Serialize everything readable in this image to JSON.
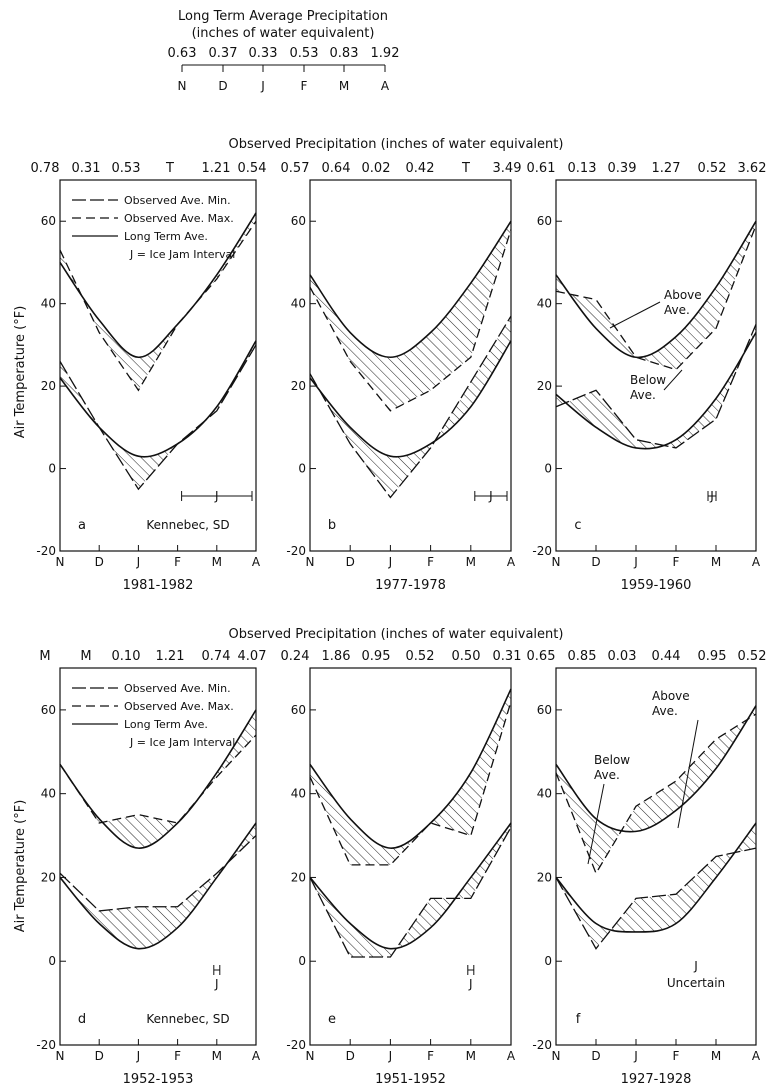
{
  "header": {
    "title_line1": "Long Term Average Precipitation",
    "title_line2": "(inches of water equivalent)",
    "values": [
      "0.63",
      "0.37",
      "0.33",
      "0.53",
      "0.83",
      "1.92"
    ],
    "months": [
      "N",
      "D",
      "J",
      "F",
      "M",
      "A"
    ]
  },
  "obs_precip_title": "Observed Precipitation (inches of water equivalent)",
  "y_axis_label": "Air Temperature (°F)",
  "x_months": [
    "N",
    "D",
    "J",
    "F",
    "M",
    "A"
  ],
  "y_ticks": [
    "-20",
    "0",
    "20",
    "40",
    "60"
  ],
  "legend": {
    "min": "Observed Ave. Min.",
    "max": "Observed Ave. Max.",
    "long": "Long Term Ave.",
    "jam": "J = Ice Jam Interval"
  },
  "colors": {
    "ink": "#111111",
    "hatch": "#222222",
    "paper": "#ffffff"
  },
  "chart_data": [
    {
      "type": "line",
      "panel": "a",
      "location": "Kennebec, SD",
      "season": "1981-1982",
      "observed_precip": [
        "0.78",
        "0.31",
        "0.53",
        "T",
        "1.21",
        "0.54"
      ],
      "x": [
        "N",
        "D",
        "J",
        "F",
        "M",
        "A"
      ],
      "ylim": [
        -20,
        70
      ],
      "long_max": [
        50,
        36,
        27,
        35,
        47,
        62
      ],
      "obs_max": [
        53,
        33,
        19,
        35,
        46,
        60
      ],
      "long_min": [
        22,
        10,
        3,
        6,
        15,
        31
      ],
      "obs_min": [
        26,
        10,
        -5,
        6,
        14,
        30
      ],
      "ice_jam": "J",
      "ice_jam_range": [
        "F",
        "A"
      ]
    },
    {
      "type": "line",
      "panel": "b",
      "location": "",
      "season": "1977-1978",
      "observed_precip": [
        "0.57",
        "0.64",
        "0.02",
        "0.42",
        "T",
        "3.49"
      ],
      "x": [
        "N",
        "D",
        "J",
        "F",
        "M",
        "A"
      ],
      "ylim": [
        -20,
        70
      ],
      "long_max": [
        47,
        33,
        27,
        33,
        45,
        60
      ],
      "obs_max": [
        44,
        26,
        14,
        19,
        27,
        58
      ],
      "long_min": [
        22,
        10,
        3,
        6,
        15,
        31
      ],
      "obs_min": [
        23,
        6,
        -7,
        5,
        21,
        37
      ],
      "ice_jam": "J",
      "ice_jam_range": [
        "M",
        "A"
      ]
    },
    {
      "type": "line",
      "panel": "c",
      "location": "",
      "season": "1959-1960",
      "observed_precip": [
        "0.61",
        "0.13",
        "0.39",
        "1.27",
        "0.52",
        "3.62"
      ],
      "x": [
        "N",
        "D",
        "J",
        "F",
        "M",
        "A"
      ],
      "ylim": [
        -20,
        70
      ],
      "long_max": [
        47,
        34,
        27,
        32,
        44,
        60
      ],
      "obs_max": [
        43,
        41,
        27,
        24,
        34,
        59
      ],
      "long_min": [
        18,
        10,
        5,
        7,
        17,
        33
      ],
      "obs_min": [
        15,
        19,
        7,
        5,
        12,
        35
      ],
      "ice_jam": "J",
      "ice_jam_range": [
        "M",
        "A"
      ],
      "annotations": [
        "Above Ave.",
        "Below Ave."
      ]
    },
    {
      "type": "line",
      "panel": "d",
      "location": "Kennebec, SD",
      "season": "1952-1953",
      "observed_precip": [
        "M",
        "M",
        "0.10",
        "1.21",
        "0.74",
        "4.07"
      ],
      "x": [
        "N",
        "D",
        "J",
        "F",
        "M",
        "A"
      ],
      "ylim": [
        -20,
        70
      ],
      "long_max": [
        47,
        34,
        27,
        33,
        45,
        60
      ],
      "obs_max": [
        47,
        33,
        35,
        33,
        44,
        54
      ],
      "long_min": [
        20,
        9,
        3,
        8,
        20,
        33
      ],
      "obs_min": [
        21,
        12,
        13,
        13,
        21,
        30
      ],
      "ice_jam": "J",
      "ice_jam_range": [
        "M",
        "M"
      ]
    },
    {
      "type": "line",
      "panel": "e",
      "location": "",
      "season": "1951-1952",
      "observed_precip": [
        "0.24",
        "1.86",
        "0.95",
        "0.52",
        "0.50",
        "0.31"
      ],
      "x": [
        "N",
        "D",
        "J",
        "F",
        "M",
        "A"
      ],
      "ylim": [
        -20,
        70
      ],
      "long_max": [
        47,
        34,
        27,
        33,
        45,
        65
      ],
      "obs_max": [
        44,
        23,
        23,
        33,
        30,
        62
      ],
      "long_min": [
        20,
        9,
        3,
        8,
        20,
        33
      ],
      "obs_min": [
        20,
        1,
        1,
        15,
        15,
        32
      ],
      "ice_jam": "J",
      "ice_jam_range": [
        "M",
        "M"
      ]
    },
    {
      "type": "line",
      "panel": "f",
      "location": "",
      "season": "1927-1928",
      "observed_precip": [
        "0.65",
        "0.85",
        "0.03",
        "0.44",
        "0.95",
        "0.52"
      ],
      "x": [
        "N",
        "D",
        "J",
        "F",
        "M",
        "A"
      ],
      "ylim": [
        -20,
        70
      ],
      "long_max": [
        47,
        34,
        31,
        36,
        46,
        61
      ],
      "obs_max": [
        45,
        21,
        37,
        43,
        53,
        59
      ],
      "long_min": [
        20,
        9,
        7,
        9,
        20,
        33
      ],
      "obs_min": [
        20,
        3,
        15,
        16,
        25,
        27
      ],
      "ice_jam": "J",
      "ice_jam_note": "Uncertain",
      "annotations": [
        "Above Ave.",
        "Below Ave."
      ]
    }
  ]
}
